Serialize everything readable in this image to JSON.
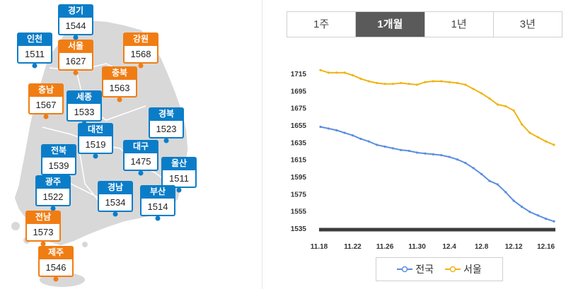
{
  "regions": [
    {
      "id": "gyeonggi",
      "name": "경기",
      "value": "1544",
      "color": "blue"
    },
    {
      "id": "incheon",
      "name": "인천",
      "value": "1511",
      "color": "blue"
    },
    {
      "id": "seoul",
      "name": "서울",
      "value": "1627",
      "color": "orange"
    },
    {
      "id": "gangwon",
      "name": "강원",
      "value": "1568",
      "color": "orange"
    },
    {
      "id": "chungbuk",
      "name": "충북",
      "value": "1563",
      "color": "orange"
    },
    {
      "id": "chungnam",
      "name": "충남",
      "value": "1567",
      "color": "orange"
    },
    {
      "id": "sejong",
      "name": "세종",
      "value": "1533",
      "color": "blue"
    },
    {
      "id": "gyeongbuk",
      "name": "경북",
      "value": "1523",
      "color": "blue"
    },
    {
      "id": "daejeon",
      "name": "대전",
      "value": "1519",
      "color": "blue"
    },
    {
      "id": "jeonbuk",
      "name": "전북",
      "value": "1539",
      "color": "blue"
    },
    {
      "id": "daegu",
      "name": "대구",
      "value": "1475",
      "color": "blue"
    },
    {
      "id": "ulsan",
      "name": "울산",
      "value": "1511",
      "color": "blue"
    },
    {
      "id": "gwangju",
      "name": "광주",
      "value": "1522",
      "color": "blue"
    },
    {
      "id": "gyeongnam",
      "name": "경남",
      "value": "1534",
      "color": "blue"
    },
    {
      "id": "busan",
      "name": "부산",
      "value": "1514",
      "color": "blue"
    },
    {
      "id": "jeonnam",
      "name": "전남",
      "value": "1573",
      "color": "orange"
    },
    {
      "id": "jeju",
      "name": "제주",
      "value": "1546",
      "color": "orange"
    }
  ],
  "colors": {
    "blue": "#0b7dc8",
    "orange": "#f07d14",
    "national_line": "#5b8ee0",
    "seoul_line": "#f0b414"
  },
  "period_tabs": [
    {
      "label": "1주",
      "active": false
    },
    {
      "label": "1개월",
      "active": true
    },
    {
      "label": "1년",
      "active": false
    },
    {
      "label": "3년",
      "active": false
    }
  ],
  "chart_data": {
    "type": "line",
    "x": [
      "11.18",
      "11.19",
      "11.20",
      "11.21",
      "11.22",
      "11.23",
      "11.24",
      "11.25",
      "11.26",
      "11.27",
      "11.28",
      "11.29",
      "11.30",
      "12.1",
      "12.2",
      "12.3",
      "12.4",
      "12.5",
      "12.6",
      "12.7",
      "12.8",
      "12.9",
      "12.10",
      "12.11",
      "12.12",
      "12.13",
      "12.14",
      "12.15",
      "12.16",
      "12.17"
    ],
    "xticks": [
      "11.18",
      "11.22",
      "11.26",
      "11.30",
      "12.4",
      "12.8",
      "12.12",
      "12.16"
    ],
    "yticks": [
      1535,
      1555,
      1575,
      1595,
      1615,
      1635,
      1655,
      1675,
      1695,
      1715
    ],
    "ylim": [
      1535,
      1720
    ],
    "series": [
      {
        "name": "전국",
        "values": [
          1653,
          1651,
          1649,
          1646,
          1643,
          1639,
          1636,
          1632,
          1630,
          1628,
          1626,
          1625,
          1623,
          1622,
          1621,
          1620,
          1618,
          1615,
          1611,
          1605,
          1598,
          1590,
          1586,
          1577,
          1567,
          1560,
          1554,
          1550,
          1546,
          1543
        ]
      },
      {
        "name": "서울",
        "values": [
          1719,
          1716,
          1716,
          1716,
          1713,
          1709,
          1706,
          1704,
          1703,
          1703,
          1704,
          1703,
          1702,
          1705,
          1706,
          1706,
          1705,
          1704,
          1702,
          1697,
          1692,
          1686,
          1679,
          1677,
          1672,
          1656,
          1646,
          1641,
          1636,
          1632
        ]
      }
    ]
  }
}
